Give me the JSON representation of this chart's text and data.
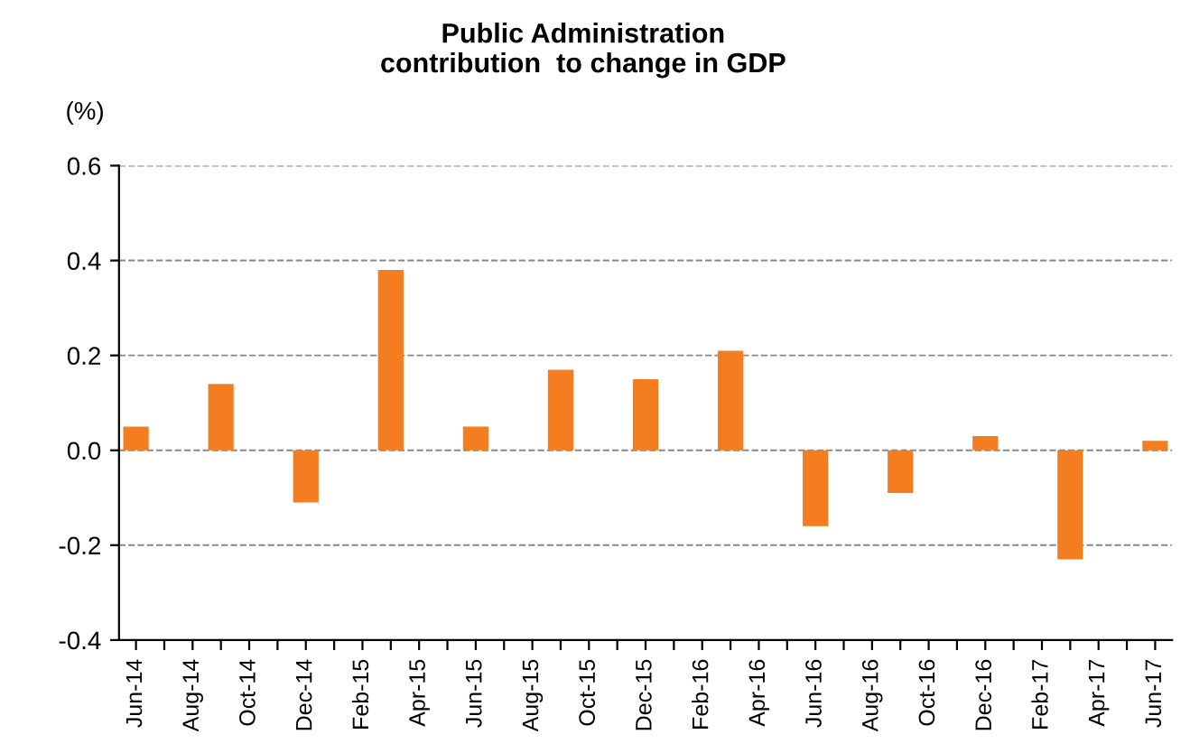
{
  "chart_data": {
    "type": "bar",
    "title": "Public Administration\ncontribution  to change in GDP",
    "ylabel": "(%)",
    "categories": [
      "Jun-14",
      null,
      "Aug-14",
      null,
      "Oct-14",
      null,
      "Dec-14",
      null,
      "Feb-15",
      null,
      "Apr-15",
      null,
      "Jun-15",
      null,
      "Aug-15",
      null,
      "Oct-15",
      null,
      "Dec-15",
      null,
      "Feb-16",
      null,
      "Apr-16",
      null,
      "Jun-16",
      null,
      "Aug-16",
      null,
      "Oct-16",
      null,
      "Dec-16",
      null,
      "Feb-17",
      null,
      "Apr-17",
      null,
      "Jun-17"
    ],
    "values": [
      0.05,
      null,
      null,
      0.14,
      null,
      null,
      -0.11,
      null,
      null,
      0.38,
      null,
      null,
      0.05,
      null,
      null,
      0.17,
      null,
      null,
      0.15,
      null,
      null,
      0.21,
      null,
      null,
      -0.16,
      null,
      null,
      -0.09,
      null,
      null,
      0.03,
      null,
      null,
      -0.23,
      null,
      null,
      0.02
    ],
    "color": "#f47d20",
    "ylim": [
      -0.4,
      0.6
    ],
    "yticks": [
      {
        "value": -0.4,
        "label": "-0.4"
      },
      {
        "value": -0.2,
        "label": "-0.2"
      },
      {
        "value": 0,
        "label": "0.0"
      },
      {
        "value": 0.2,
        "label": "0.2"
      },
      {
        "value": 0.4,
        "label": "0.4"
      },
      {
        "value": 0.6,
        "label": "0.6"
      }
    ],
    "grid": "y"
  }
}
